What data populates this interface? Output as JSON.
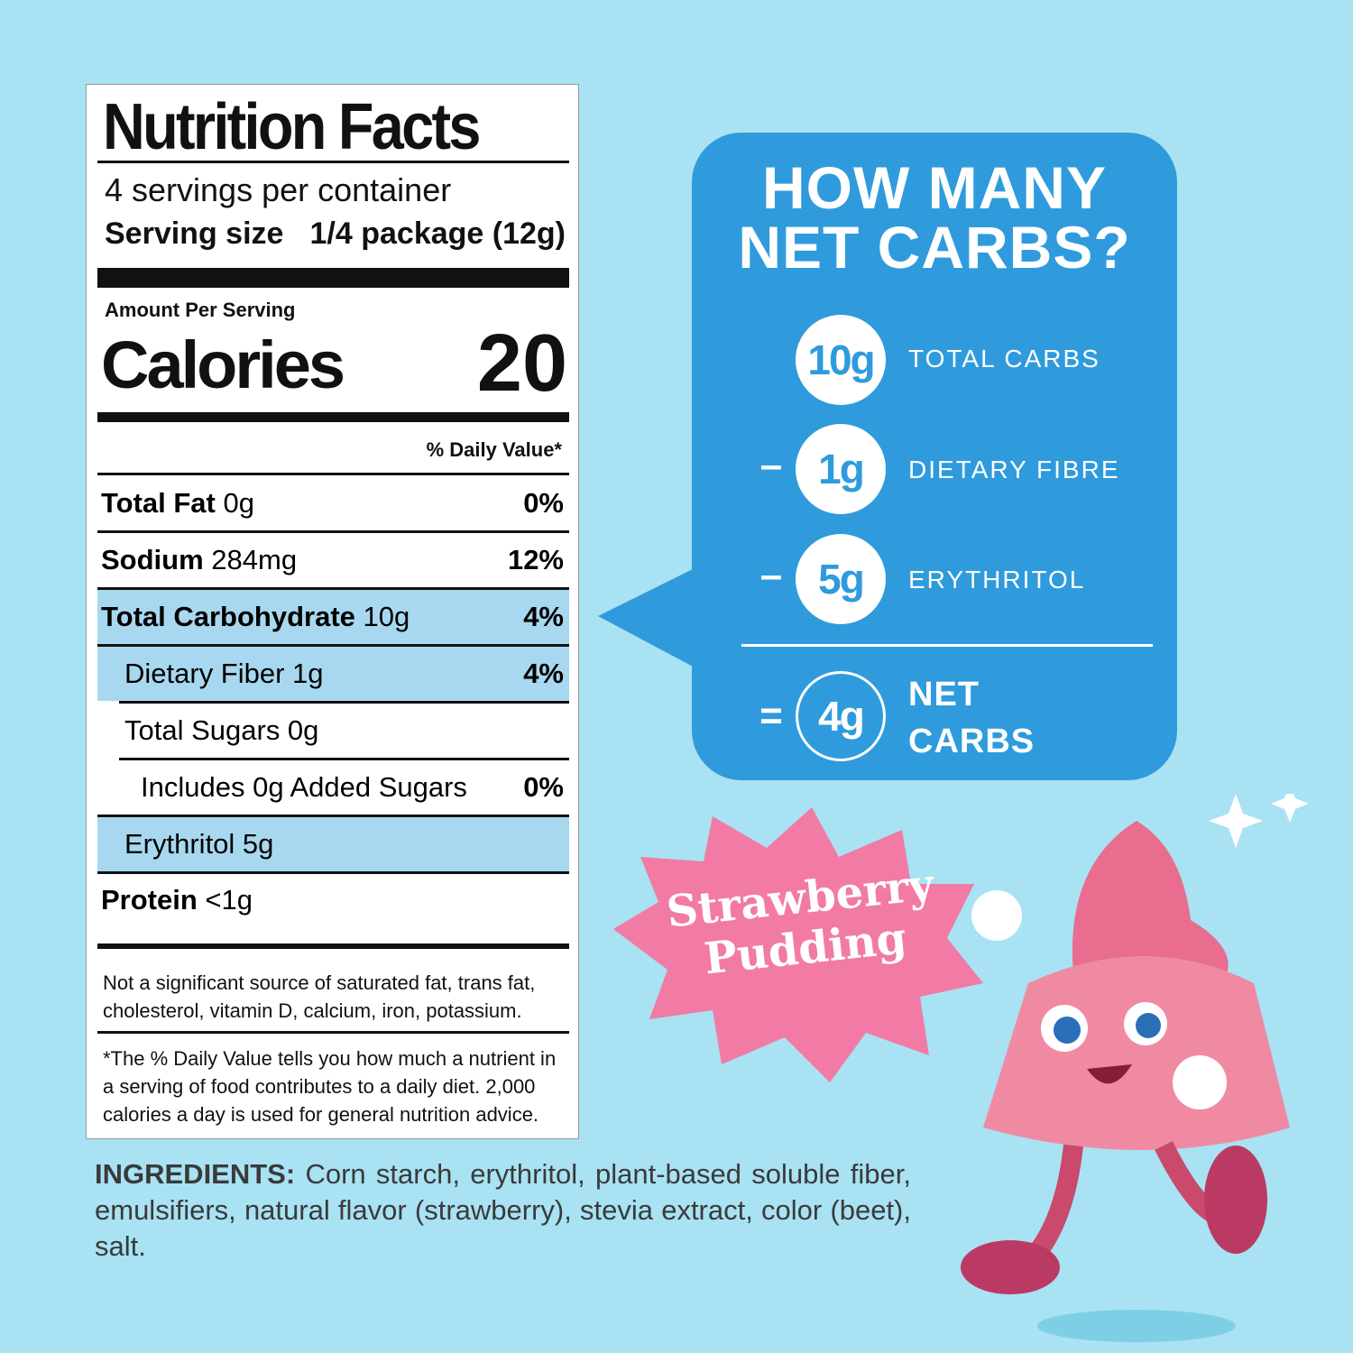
{
  "nutrition_facts": {
    "title": "Nutrition Facts",
    "servings": "4 servings per container",
    "serving_size_label": "Serving size",
    "serving_size": "1/4 package (12g)",
    "amount_per_serving": "Amount Per Serving",
    "calories_label": "Calories",
    "calories": "20",
    "daily_value_header": "% Daily Value*",
    "rows": [
      {
        "name": "Total Fat",
        "amount": "0g",
        "dv": "0%"
      },
      {
        "name": "Sodium",
        "amount": "284mg",
        "dv": "12%"
      },
      {
        "name": "Total Carbohydrate",
        "amount": "10g",
        "dv": "4%"
      },
      {
        "name": "Dietary Fiber 1g",
        "dv": "4%"
      },
      {
        "name": "Total Sugars 0g"
      },
      {
        "name": "Includes 0g Added Sugars",
        "dv": "0%"
      },
      {
        "name": "Erythritol 5g"
      },
      {
        "name": "Protein",
        "amount": "<1g"
      }
    ],
    "note": "Not a significant source of saturated fat, trans fat, cholesterol, vitamin D, calcium, iron, potassium.",
    "footnote": "*The % Daily Value tells you how much a nutrient in a serving of food contributes to a daily diet. 2,000 calories a day is used for general nutrition advice."
  },
  "ingredients": {
    "label": "INGREDIENTS:",
    "text": "Corn starch, erythritol, plant-based soluble fiber, emulsifiers, natural flavor (strawberry), stevia extract, color (beet), salt."
  },
  "net_carbs": {
    "title_line_1": "HOW MANY",
    "title_line_2": "NET CARBS?",
    "items": [
      {
        "amount": "10g",
        "label": "TOTAL CARBS"
      },
      {
        "operator": "–",
        "amount": "1g",
        "label": "DIETARY FIBRE"
      },
      {
        "operator": "–",
        "amount": "5g",
        "label": "ERYTHRITOL"
      },
      {
        "operator": "=",
        "amount": "4g",
        "label": "NET CARBS"
      }
    ]
  },
  "badge": "Strawberry Pudding"
}
